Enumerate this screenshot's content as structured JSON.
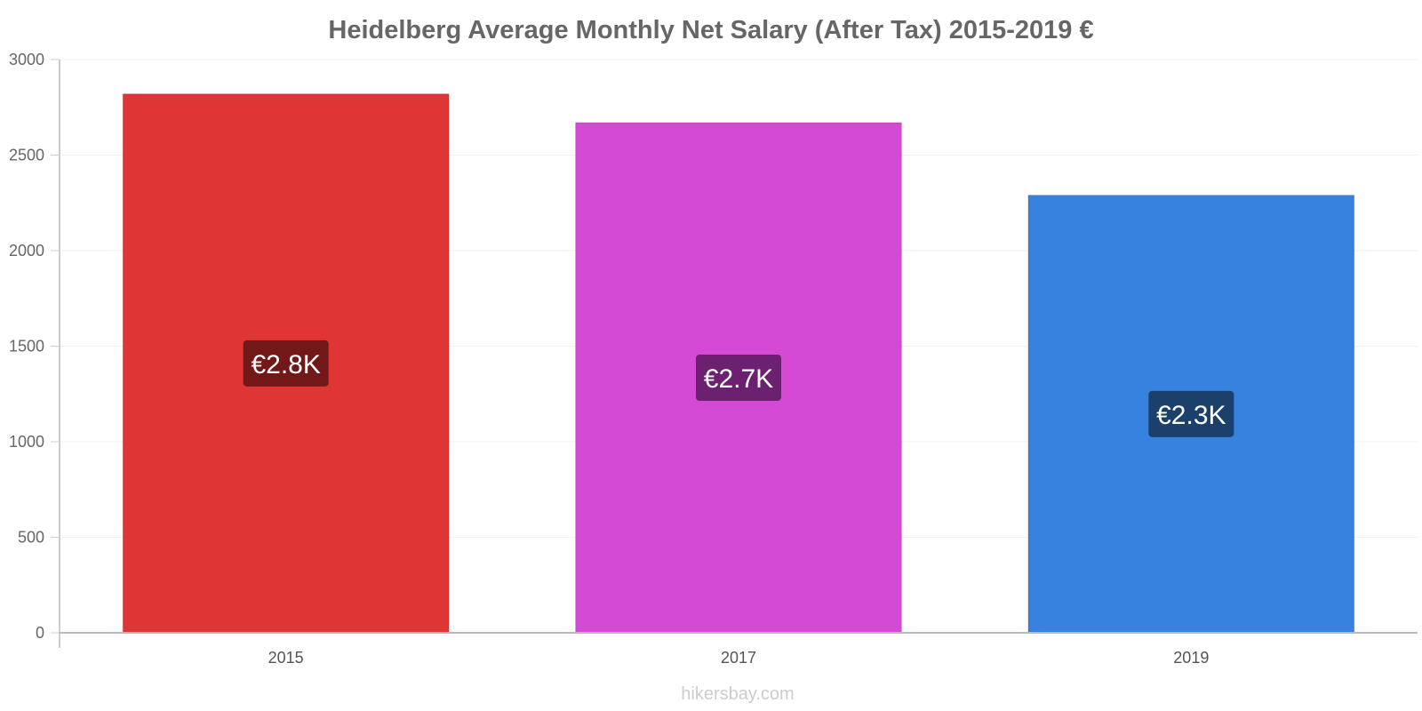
{
  "chart_data": {
    "type": "bar",
    "title": "Heidelberg Average Monthly Net Salary (After Tax) 2015-2019 €",
    "categories": [
      "2015",
      "2017",
      "2019"
    ],
    "values": [
      2820,
      2670,
      2290
    ],
    "data_labels": [
      "€2.8K",
      "€2.7K",
      "€2.3K"
    ],
    "bar_colors": [
      "#e03535",
      "#d44ad4",
      "#3682de"
    ],
    "label_bg_colors": [
      "#721818",
      "#6b2070",
      "#1b406b"
    ],
    "ylim": [
      0,
      3000
    ],
    "yticks": [
      0,
      500,
      1000,
      1500,
      2000,
      2500,
      3000
    ],
    "grid": true,
    "legend": "none"
  },
  "watermark": "hikersbay.com"
}
